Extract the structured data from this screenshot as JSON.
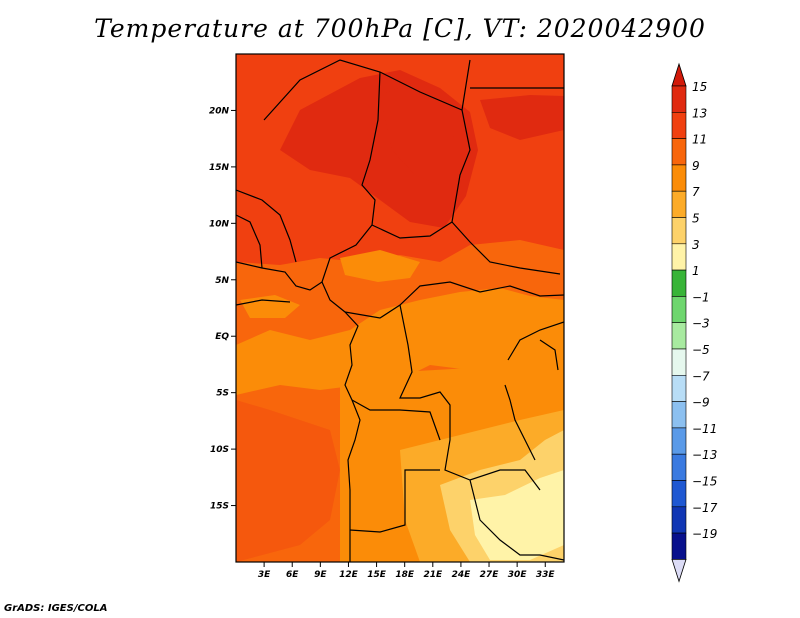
{
  "title": "Temperature at 700hPa [C], VT: 2020042900",
  "footer": "GrADS: IGES/COLA",
  "map": {
    "lon_range": [
      0,
      35
    ],
    "lat_range": [
      -20,
      25
    ],
    "lon_ticks": [
      {
        "value": 3,
        "label": "3E"
      },
      {
        "value": 6,
        "label": "6E"
      },
      {
        "value": 9,
        "label": "9E"
      },
      {
        "value": 12,
        "label": "12E"
      },
      {
        "value": 15,
        "label": "15E"
      },
      {
        "value": 18,
        "label": "18E"
      },
      {
        "value": 21,
        "label": "21E"
      },
      {
        "value": 24,
        "label": "24E"
      },
      {
        "value": 27,
        "label": "27E"
      },
      {
        "value": 30,
        "label": "30E"
      },
      {
        "value": 33,
        "label": "33E"
      }
    ],
    "lat_ticks": [
      {
        "value": 20,
        "label": "20N"
      },
      {
        "value": 15,
        "label": "15N"
      },
      {
        "value": 10,
        "label": "10N"
      },
      {
        "value": 5,
        "label": "5N"
      },
      {
        "value": 0,
        "label": "EQ"
      },
      {
        "value": -5,
        "label": "5S"
      },
      {
        "value": -10,
        "label": "10S"
      },
      {
        "value": -15,
        "label": "15S"
      }
    ]
  },
  "colorbar": {
    "labels": [
      "15",
      "13",
      "11",
      "9",
      "7",
      "5",
      "3",
      "1",
      "−1",
      "−3",
      "−5",
      "−7",
      "−9",
      "−11",
      "−13",
      "−15",
      "−17",
      "−19"
    ],
    "colors": [
      "#e02a10",
      "#f04010",
      "#f8660c",
      "#fb8c08",
      "#fcab28",
      "#fdd26a",
      "#fff3a8",
      "#38b438",
      "#6ed66e",
      "#a8eaa0",
      "#e6f8ee",
      "#b8ddf6",
      "#8cc0f0",
      "#5a9ae8",
      "#3a7ae0",
      "#1f58d2",
      "#1036b4",
      "#08108c"
    ],
    "top_color": "#d21a0a",
    "bottom_color": "#dcdcf6"
  }
}
